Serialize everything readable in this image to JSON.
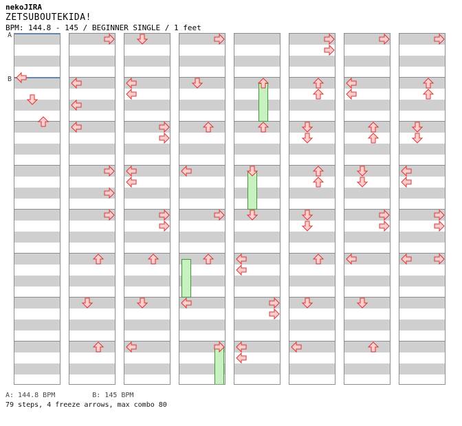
{
  "header": {
    "site_title": "nekoJIRA",
    "song_title": "ZETSUBOUTEKIDA!",
    "bpm_info": "BPM: 144.8 - 145 / BEGINNER SINGLE / 1 feet"
  },
  "markers": [
    {
      "label": "A",
      "beat": 0
    },
    {
      "label": "B",
      "beat": 4
    }
  ],
  "chart": {
    "beats_per_column": 32,
    "measures_per_column": 8,
    "lanes": [
      "left",
      "down",
      "up",
      "right"
    ],
    "columns": [
      {
        "arrows": [
          {
            "beat": 3.5,
            "dir": "left"
          },
          {
            "beat": 5.5,
            "dir": "down"
          },
          {
            "beat": 7.5,
            "dir": "up"
          }
        ],
        "freezes": []
      },
      {
        "arrows": [
          {
            "beat": 0,
            "dir": "right"
          },
          {
            "beat": 4,
            "dir": "left"
          },
          {
            "beat": 6,
            "dir": "left"
          },
          {
            "beat": 8,
            "dir": "left"
          },
          {
            "beat": 12,
            "dir": "right"
          },
          {
            "beat": 14,
            "dir": "right"
          },
          {
            "beat": 16,
            "dir": "right"
          },
          {
            "beat": 20,
            "dir": "up"
          },
          {
            "beat": 24,
            "dir": "down"
          },
          {
            "beat": 28,
            "dir": "up"
          }
        ],
        "freezes": []
      },
      {
        "arrows": [
          {
            "beat": 0,
            "dir": "down"
          },
          {
            "beat": 4,
            "dir": "left"
          },
          {
            "beat": 5,
            "dir": "left"
          },
          {
            "beat": 8,
            "dir": "right"
          },
          {
            "beat": 9,
            "dir": "right"
          },
          {
            "beat": 12,
            "dir": "left"
          },
          {
            "beat": 13,
            "dir": "left"
          },
          {
            "beat": 16,
            "dir": "right"
          },
          {
            "beat": 17,
            "dir": "right"
          },
          {
            "beat": 20,
            "dir": "up"
          },
          {
            "beat": 24,
            "dir": "down"
          },
          {
            "beat": 28,
            "dir": "left"
          }
        ],
        "freezes": []
      },
      {
        "arrows": [
          {
            "beat": 0,
            "dir": "right"
          },
          {
            "beat": 4,
            "dir": "down"
          },
          {
            "beat": 8,
            "dir": "up"
          },
          {
            "beat": 12,
            "dir": "left"
          },
          {
            "beat": 16,
            "dir": "right"
          },
          {
            "beat": 20,
            "dir": "up"
          },
          {
            "beat": 24,
            "dir": "left"
          },
          {
            "beat": 28,
            "dir": "right"
          }
        ],
        "freezes": [
          {
            "start": 20,
            "end": 23.5,
            "lane": "left"
          },
          {
            "start": 28,
            "end": 31.5,
            "lane": "right"
          }
        ]
      },
      {
        "arrows": [
          {
            "beat": 4,
            "dir": "up"
          },
          {
            "beat": 8,
            "dir": "up"
          },
          {
            "beat": 12,
            "dir": "down"
          },
          {
            "beat": 16,
            "dir": "down"
          },
          {
            "beat": 20,
            "dir": "left"
          },
          {
            "beat": 21,
            "dir": "left"
          },
          {
            "beat": 24,
            "dir": "right"
          },
          {
            "beat": 25,
            "dir": "right"
          },
          {
            "beat": 28,
            "dir": "left"
          },
          {
            "beat": 29,
            "dir": "left"
          }
        ],
        "freezes": [
          {
            "start": 4,
            "end": 7.5,
            "lane": "up"
          },
          {
            "start": 12,
            "end": 15.5,
            "lane": "down"
          }
        ]
      },
      {
        "arrows": [
          {
            "beat": 0,
            "dir": "right"
          },
          {
            "beat": 1,
            "dir": "right"
          },
          {
            "beat": 4,
            "dir": "up"
          },
          {
            "beat": 5,
            "dir": "up"
          },
          {
            "beat": 8,
            "dir": "down"
          },
          {
            "beat": 9,
            "dir": "down"
          },
          {
            "beat": 12,
            "dir": "up"
          },
          {
            "beat": 13,
            "dir": "up"
          },
          {
            "beat": 16,
            "dir": "down"
          },
          {
            "beat": 17,
            "dir": "down"
          },
          {
            "beat": 20,
            "dir": "up"
          },
          {
            "beat": 24,
            "dir": "down"
          },
          {
            "beat": 28,
            "dir": "left"
          }
        ],
        "freezes": []
      },
      {
        "arrows": [
          {
            "beat": 0,
            "dir": "right"
          },
          {
            "beat": 4,
            "dir": "left"
          },
          {
            "beat": 5,
            "dir": "left"
          },
          {
            "beat": 8,
            "dir": "up"
          },
          {
            "beat": 9,
            "dir": "up"
          },
          {
            "beat": 12,
            "dir": "down"
          },
          {
            "beat": 13,
            "dir": "down"
          },
          {
            "beat": 16,
            "dir": "right"
          },
          {
            "beat": 17,
            "dir": "right"
          },
          {
            "beat": 20,
            "dir": "left"
          },
          {
            "beat": 24,
            "dir": "down"
          },
          {
            "beat": 28,
            "dir": "up"
          }
        ],
        "freezes": []
      },
      {
        "arrows": [
          {
            "beat": 0,
            "dir": "right"
          },
          {
            "beat": 4,
            "dir": "up"
          },
          {
            "beat": 5,
            "dir": "up"
          },
          {
            "beat": 8,
            "dir": "down"
          },
          {
            "beat": 9,
            "dir": "down"
          },
          {
            "beat": 12,
            "dir": "left"
          },
          {
            "beat": 13,
            "dir": "left"
          },
          {
            "beat": 16,
            "dir": "right"
          },
          {
            "beat": 17,
            "dir": "right"
          },
          {
            "beat": 20,
            "dir": "left"
          },
          {
            "beat": 20.01,
            "dir": "right"
          }
        ],
        "freezes": []
      }
    ]
  },
  "footer": {
    "bpm_a": "A: 144.8 BPM",
    "bpm_b": "B: 145 BPM",
    "stats": "79 steps, 4 freeze arrows, max combo 80"
  },
  "colors": {
    "arrow_fill": "#ffd0d0",
    "arrow_stroke": "#e03030",
    "freeze_fill": "#c8f0c0",
    "freeze_stroke": "#3a9a3a",
    "measure_line": "#8c8c8c",
    "bpm_line": "#4a7fc0",
    "stripe_gray": "#cfcfcf"
  }
}
